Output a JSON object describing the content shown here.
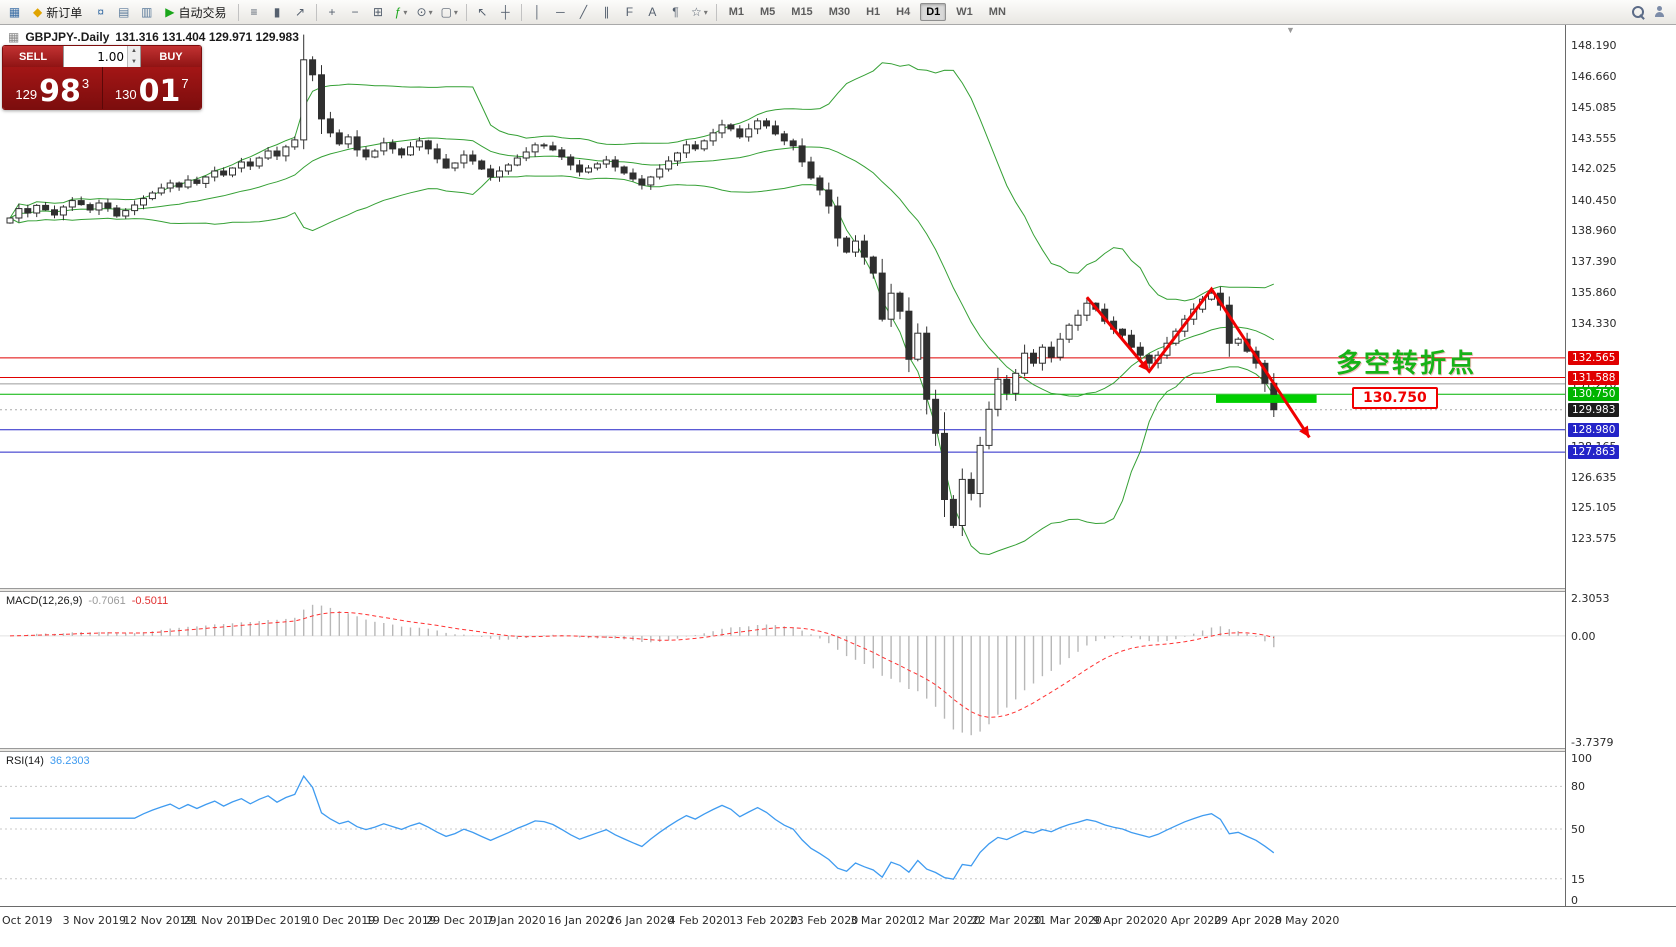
{
  "toolbar": {
    "new_order": "新订单",
    "autotrade": "自动交易",
    "timeframes": [
      "M1",
      "M5",
      "M15",
      "M30",
      "H1",
      "H4",
      "D1",
      "W1",
      "MN"
    ],
    "active_timeframe": "D1",
    "items": [
      {
        "type": "icon",
        "name": "terminal-icon",
        "glyph": "▦",
        "color": "#3a6ea5"
      },
      {
        "type": "label",
        "name": "new-order-button",
        "glyph": "◆",
        "color": "#e0a400",
        "text": "新订单"
      },
      {
        "type": "icon",
        "name": "market-watch-icon",
        "glyph": "¤",
        "color": "#3a6ea5"
      },
      {
        "type": "icon",
        "name": "data-window-icon",
        "glyph": "▤",
        "color": "#5a7a9a"
      },
      {
        "type": "icon",
        "name": "navigator-icon",
        "glyph": "▥",
        "color": "#5a7a9a"
      },
      {
        "type": "label",
        "name": "autotrade-button",
        "glyph": "▶",
        "color": "#1aa61a",
        "text": "自动交易"
      },
      {
        "type": "sep"
      },
      {
        "type": "icon",
        "name": "bar-chart-icon",
        "glyph": "≡"
      },
      {
        "type": "icon",
        "name": "candle-chart-icon",
        "glyph": "▮"
      },
      {
        "type": "icon",
        "name": "line-chart-icon",
        "glyph": "↗"
      },
      {
        "type": "sep"
      },
      {
        "type": "icon",
        "name": "zoom-in-icon",
        "glyph": "+"
      },
      {
        "type": "icon",
        "name": "zoom-out-icon",
        "glyph": "−"
      },
      {
        "type": "icon",
        "name": "tile-windows-icon",
        "glyph": "⊞"
      },
      {
        "type": "icon",
        "name": "indicators-icon",
        "glyph": "ƒ",
        "color": "#1aa61a",
        "dropdown": true
      },
      {
        "type": "icon",
        "name": "periods-icon",
        "glyph": "⊙",
        "dropdown": true
      },
      {
        "type": "icon",
        "name": "templates-icon",
        "glyph": "▢",
        "dropdown": true
      },
      {
        "type": "sep"
      },
      {
        "type": "icon",
        "name": "cursor-icon",
        "glyph": "↖"
      },
      {
        "type": "icon",
        "name": "crosshair-icon",
        "glyph": "┼"
      },
      {
        "type": "sep"
      },
      {
        "type": "icon",
        "name": "vertical-line-icon",
        "glyph": "│"
      },
      {
        "type": "icon",
        "name": "horizontal-line-icon",
        "glyph": "─"
      },
      {
        "type": "icon",
        "name": "trendline-icon",
        "glyph": "╱"
      },
      {
        "type": "icon",
        "name": "channel-icon",
        "glyph": "∥"
      },
      {
        "type": "icon",
        "name": "fibonacci-icon",
        "glyph": "F"
      },
      {
        "type": "icon",
        "name": "text-icon",
        "glyph": "A"
      },
      {
        "type": "icon",
        "name": "label-icon",
        "glyph": "¶"
      },
      {
        "type": "icon",
        "name": "shapes-icon",
        "glyph": "☆",
        "dropdown": true
      },
      {
        "type": "sep"
      }
    ]
  },
  "chart_header": {
    "symbol": "GBPJPY-.Daily",
    "ohlc": "131.316 131.404 129.971 129.983"
  },
  "trade_panel": {
    "sell_label": "SELL",
    "buy_label": "BUY",
    "volume": "1.00",
    "bid": {
      "prefix": "129",
      "big": "98",
      "sup": "3"
    },
    "ask": {
      "prefix": "130",
      "big": "01",
      "sup": "7"
    }
  },
  "chart_data": {
    "type": "candlestick",
    "symbol": "GBPJPY",
    "timeframe": "Daily",
    "x_labels": [
      "Oct 2019",
      "3 Nov 2019",
      "12 Nov 2019",
      "21 Nov 2019",
      "1 Dec 2019",
      "10 Dec 2019",
      "19 Dec 2019",
      "29 Dec 2019",
      "7 Jan 2020",
      "16 Jan 2020",
      "26 Jan 2020",
      "4 Feb 2020",
      "13 Feb 2020",
      "23 Feb 2020",
      "3 Mar 2020",
      "12 Mar 2020",
      "22 Mar 2020",
      "31 Mar 2020",
      "9 Apr 2020",
      "20 Apr 2020",
      "29 Apr 2020",
      "8 May 2020"
    ],
    "closes": [
      139.55,
      140.02,
      139.8,
      140.18,
      139.96,
      139.7,
      140.1,
      140.42,
      140.22,
      139.95,
      140.3,
      140.05,
      139.65,
      139.92,
      140.2,
      140.52,
      140.8,
      141.05,
      141.3,
      141.1,
      141.45,
      141.28,
      141.6,
      141.9,
      141.7,
      142.05,
      142.35,
      142.15,
      142.55,
      142.9,
      142.65,
      143.1,
      143.45,
      147.45,
      146.7,
      144.5,
      143.8,
      143.25,
      143.6,
      142.95,
      142.6,
      142.9,
      143.3,
      143.0,
      142.7,
      143.1,
      143.4,
      143.0,
      142.5,
      142.05,
      142.3,
      142.7,
      142.4,
      142.0,
      141.6,
      141.9,
      142.2,
      142.55,
      142.85,
      143.2,
      143.15,
      142.95,
      142.6,
      142.2,
      141.85,
      142.05,
      142.25,
      142.45,
      142.1,
      141.8,
      141.5,
      141.2,
      141.6,
      142.0,
      142.4,
      142.8,
      143.2,
      143.0,
      143.4,
      143.8,
      144.2,
      144.0,
      143.6,
      144.0,
      144.4,
      144.15,
      143.75,
      143.4,
      143.15,
      142.35,
      141.55,
      140.95,
      140.15,
      138.55,
      137.85,
      138.4,
      137.6,
      136.8,
      134.5,
      135.8,
      134.9,
      132.5,
      133.8,
      130.5,
      128.8,
      125.5,
      124.2,
      126.5,
      125.8,
      128.2,
      130.0,
      131.5,
      130.8,
      131.8,
      132.8,
      132.3,
      133.1,
      132.6,
      133.5,
      134.2,
      134.7,
      135.3,
      135.0,
      134.4,
      134.0,
      133.7,
      133.1,
      132.7,
      132.3,
      132.7,
      133.3,
      133.9,
      134.5,
      135.0,
      135.5,
      135.8,
      135.2,
      133.3,
      133.5,
      132.9,
      132.3,
      131.3,
      129.98
    ],
    "price_axis": {
      "min": 123.575,
      "max": 148.19,
      "labels": [
        "148.190",
        "146.660",
        "145.085",
        "143.555",
        "142.025",
        "140.450",
        "138.960",
        "137.390",
        "135.860",
        "134.330",
        "131.270",
        "128.165",
        "126.635",
        "125.105",
        "123.575"
      ],
      "current": "129.983",
      "current_value": 129.983
    },
    "levels": [
      {
        "price": 132.565,
        "label": "132.565",
        "color": "#e00000"
      },
      {
        "price": 131.588,
        "label": "131.588",
        "color": "#e00000"
      },
      {
        "price": 131.27,
        "label": "131.270",
        "color": "#9b9b9b",
        "plain": true
      },
      {
        "price": 130.75,
        "label": "130.750",
        "color": "#00b400"
      },
      {
        "price": 128.98,
        "label": "128.980",
        "color": "#2424c8"
      },
      {
        "price": 127.863,
        "label": "127.863",
        "color": "#2424c8"
      }
    ],
    "bollinger": {
      "period": 20,
      "deviation": 2,
      "color": "#35a035"
    },
    "annotations": {
      "zigzag": {
        "color": "#f00000",
        "points": [
          [
            121,
            135.6
          ],
          [
            128,
            131.9
          ],
          [
            135,
            136.0
          ],
          [
            146,
            128.6
          ]
        ],
        "arrow_at": [
          1,
          3
        ]
      },
      "support_bar": {
        "color": "#00cf00",
        "from": 135.5,
        "to": 146.8,
        "price": 130.52
      },
      "price_label": {
        "text": "130.750",
        "color": "#f00000"
      },
      "note": {
        "text": "多空转折点",
        "color": "#17b217"
      }
    },
    "macd": {
      "label": "MACD(12,26,9)",
      "value_main": "-0.7061",
      "value_signal": "-0.5011",
      "axis": [
        "2.3053",
        "0.00",
        "-3.7379"
      ],
      "hist_color": "#b8b8b8",
      "signal_color": "#ff3333"
    },
    "rsi": {
      "label": "RSI(14)",
      "value": "36.2303",
      "axis": [
        "100",
        "80",
        "50",
        "15",
        "0"
      ],
      "levels": [
        80,
        50,
        15
      ],
      "color": "#3f9bf0"
    }
  }
}
